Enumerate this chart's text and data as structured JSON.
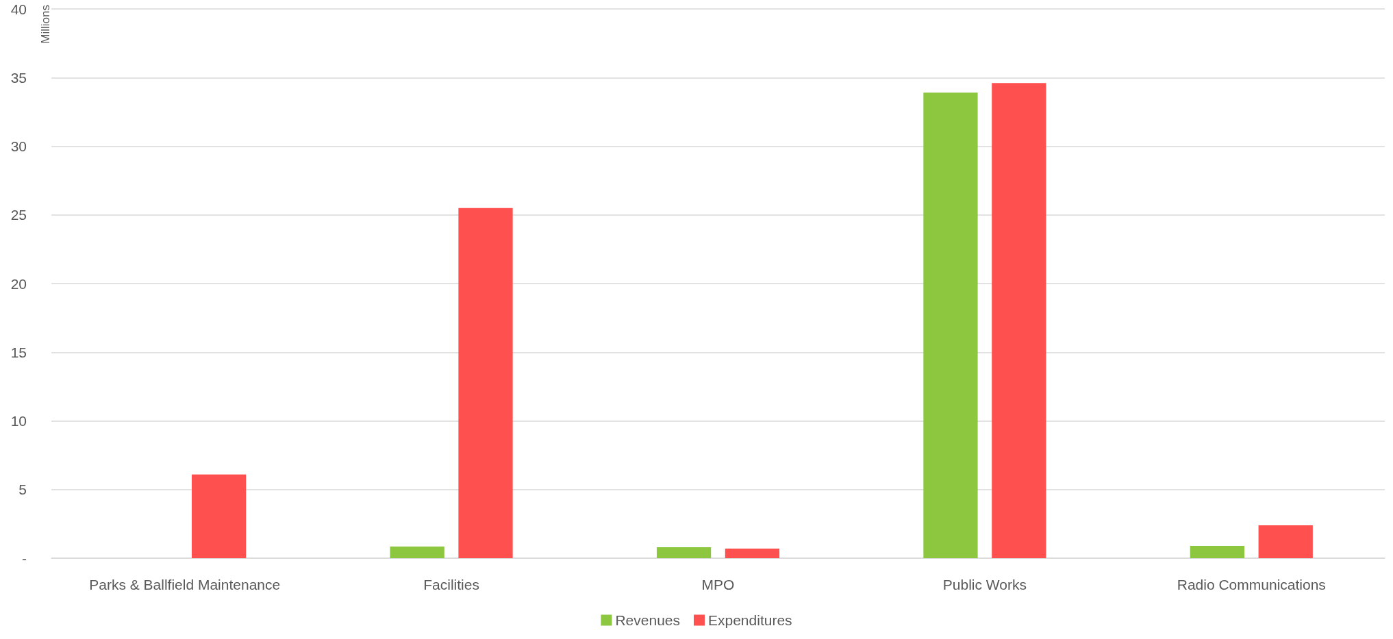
{
  "chart_data": {
    "type": "bar",
    "ylabel": "Millions",
    "categories": [
      "Parks & Ballfield Maintenance",
      "Facilities",
      "MPO",
      "Public Works",
      "Radio Communications"
    ],
    "series": [
      {
        "name": "Revenues",
        "color": "#8dc63f",
        "values": [
          0,
          0.85,
          0.8,
          33.9,
          0.9
        ]
      },
      {
        "name": "Expenditures",
        "color": "#ff5050",
        "values": [
          6.1,
          25.5,
          0.7,
          34.6,
          2.4
        ]
      }
    ],
    "ylim": [
      0,
      40
    ],
    "yticks": [
      {
        "value": 0,
        "label": "-"
      },
      5,
      10,
      15,
      20,
      25,
      30,
      35,
      40
    ],
    "grid": "y",
    "legend": "bottom"
  }
}
